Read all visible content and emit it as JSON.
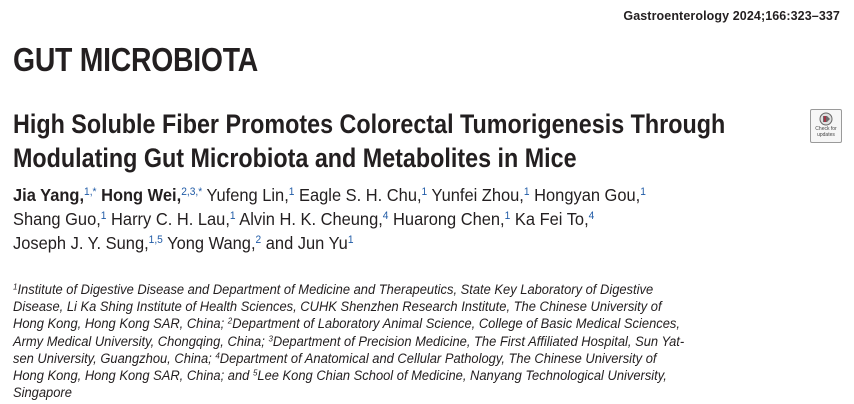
{
  "journal_citation": "Gastroenterology 2024;166:323–337",
  "section_heading": "GUT MICROBIOTA",
  "title_lines": [
    "High Soluble Fiber Promotes Colorectal Tumorigenesis Through",
    "Modulating Gut Microbiota and Metabolites in Mice"
  ],
  "check_updates_label": [
    "Check for",
    "updates"
  ],
  "author_lines": [
    [
      {
        "name": "Jia Yang,",
        "sup": "1,*",
        "bold": true
      },
      {
        "name": "Hong Wei,",
        "sup": "2,3,*",
        "bold": true
      },
      {
        "name": "Yufeng Lin,",
        "sup": "1"
      },
      {
        "name": "Eagle S. H. Chu,",
        "sup": "1"
      },
      {
        "name": "Yunfei Zhou,",
        "sup": "1"
      },
      {
        "name": "Hongyan Gou,",
        "sup": "1"
      }
    ],
    [
      {
        "name": "Shang Guo,",
        "sup": "1"
      },
      {
        "name": "Harry C. H. Lau,",
        "sup": "1"
      },
      {
        "name": "Alvin H. K. Cheung,",
        "sup": "4"
      },
      {
        "name": "Huarong Chen,",
        "sup": "1"
      },
      {
        "name": "Ka Fei To,",
        "sup": "4"
      }
    ],
    [
      {
        "name": "Joseph J. Y. Sung,",
        "sup": "1,5"
      },
      {
        "name": "Yong Wang,",
        "sup": "2"
      },
      {
        "name": "and Jun Yu",
        "sup": "1"
      }
    ]
  ],
  "affiliation_lines": [
    [
      {
        "sup": "1",
        "text": "Institute of Digestive Disease and Department of Medicine and Therapeutics, State Key Laboratory of Digestive"
      }
    ],
    [
      {
        "text": "Disease, Li Ka Shing Institute of Health Sciences, CUHK Shenzhen Research Institute, The Chinese University of"
      }
    ],
    [
      {
        "text": "Hong Kong, Hong Kong SAR, China; "
      },
      {
        "sup": "2",
        "text": "Department of Laboratory Animal Science, College of Basic Medical Sciences,"
      }
    ],
    [
      {
        "text": "Army Medical University, Chongqing, China; "
      },
      {
        "sup": "3",
        "text": "Department of Precision Medicine, The First Affiliated Hospital, Sun Yat-"
      }
    ],
    [
      {
        "text": "sen University, Guangzhou, China; "
      },
      {
        "sup": "4",
        "text": "Department of Anatomical and Cellular Pathology, The Chinese University of"
      }
    ],
    [
      {
        "text": "Hong Kong, Hong Kong SAR, China; and "
      },
      {
        "sup": "5",
        "text": "Lee Kong Chian School of Medicine, Nanyang Technological University,"
      }
    ],
    [
      {
        "text": "Singapore"
      }
    ]
  ],
  "colors": {
    "text": "#231f20",
    "affiliation_superscript": "#1f5aa6"
  }
}
